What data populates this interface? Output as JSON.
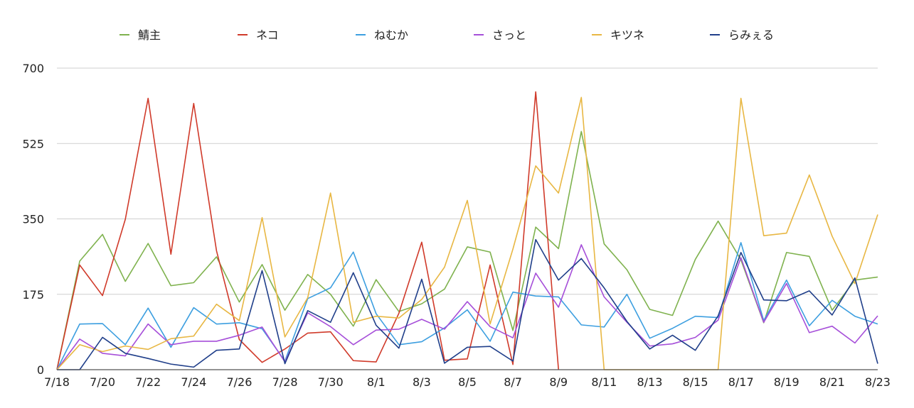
{
  "chart_data": {
    "type": "line",
    "title": "",
    "xlabel": "",
    "ylabel": "",
    "ylim": [
      0,
      700
    ],
    "yticks": [
      0,
      175,
      350,
      525,
      700
    ],
    "grid": true,
    "legend_position": "top",
    "x": [
      "7/18",
      "7/19",
      "7/20",
      "7/21",
      "7/22",
      "7/23",
      "7/24",
      "7/25",
      "7/26",
      "7/27",
      "7/28",
      "7/29",
      "7/30",
      "7/31",
      "8/1",
      "8/2",
      "8/3",
      "8/4",
      "8/5",
      "8/6",
      "8/7",
      "8/8",
      "8/9",
      "8/10",
      "8/11",
      "8/12",
      "8/13",
      "8/14",
      "8/15",
      "8/16",
      "8/17",
      "8/18",
      "8/19",
      "8/20",
      "8/21",
      "8/22",
      "8/23"
    ],
    "xtick_labels": [
      "7/18",
      "7/20",
      "7/22",
      "7/24",
      "7/26",
      "7/28",
      "7/30",
      "8/1",
      "8/3",
      "8/5",
      "8/7",
      "8/9",
      "8/11",
      "8/13",
      "8/15",
      "8/17",
      "8/19",
      "8/21",
      "8/23"
    ],
    "series": [
      {
        "name": "鯖主",
        "color": "#7fb24e",
        "values": [
          0,
          252,
          314,
          205,
          293,
          195,
          202,
          262,
          157,
          244,
          138,
          221,
          175,
          101,
          209,
          135,
          153,
          187,
          285,
          273,
          91,
          331,
          281,
          553,
          292,
          232,
          140,
          126,
          256,
          345,
          255,
          109,
          272,
          263,
          138,
          208,
          215
        ]
      },
      {
        "name": "ネコ",
        "color": "#d03a2a",
        "values": [
          0,
          243,
          172,
          349,
          630,
          268,
          618,
          276,
          70,
          17,
          48,
          85,
          88,
          21,
          18,
          131,
          296,
          22,
          25,
          243,
          12,
          645,
          0,
          null,
          null,
          null,
          null,
          null,
          null,
          null,
          null,
          null,
          null,
          null,
          null,
          null,
          null
        ]
      },
      {
        "name": "ねむか",
        "color": "#3d9fe0",
        "values": [
          0,
          106,
          107,
          58,
          143,
          52,
          144,
          106,
          109,
          95,
          20,
          165,
          190,
          273,
          130,
          58,
          65,
          97,
          139,
          66,
          180,
          171,
          169,
          104,
          99,
          175,
          73,
          96,
          124,
          121,
          295,
          114,
          208,
          102,
          161,
          124,
          106
        ]
      },
      {
        "name": "さっと",
        "color": "#a64fd9",
        "values": [
          0,
          71,
          38,
          32,
          106,
          58,
          66,
          66,
          80,
          99,
          18,
          132,
          100,
          58,
          92,
          94,
          117,
          94,
          158,
          100,
          74,
          224,
          145,
          290,
          169,
          110,
          55,
          60,
          75,
          115,
          260,
          110,
          200,
          86,
          101,
          62,
          125
        ]
      },
      {
        "name": "キツネ",
        "color": "#e8b743",
        "values": [
          0,
          58,
          42,
          55,
          47,
          72,
          78,
          152,
          114,
          353,
          76,
          167,
          410,
          110,
          124,
          120,
          163,
          238,
          393,
          106,
          280,
          473,
          410,
          632,
          0,
          0,
          0,
          0,
          0,
          0,
          630,
          311,
          317,
          452,
          310,
          200,
          360
        ]
      },
      {
        "name": "らみぇる",
        "color": "#203f8a",
        "values": [
          0,
          0,
          75,
          38,
          26,
          13,
          6,
          45,
          48,
          230,
          14,
          137,
          110,
          225,
          103,
          50,
          210,
          15,
          52,
          54,
          20,
          302,
          208,
          258,
          190,
          112,
          48,
          80,
          45,
          125,
          272,
          162,
          160,
          183,
          127,
          213,
          14
        ]
      }
    ]
  }
}
